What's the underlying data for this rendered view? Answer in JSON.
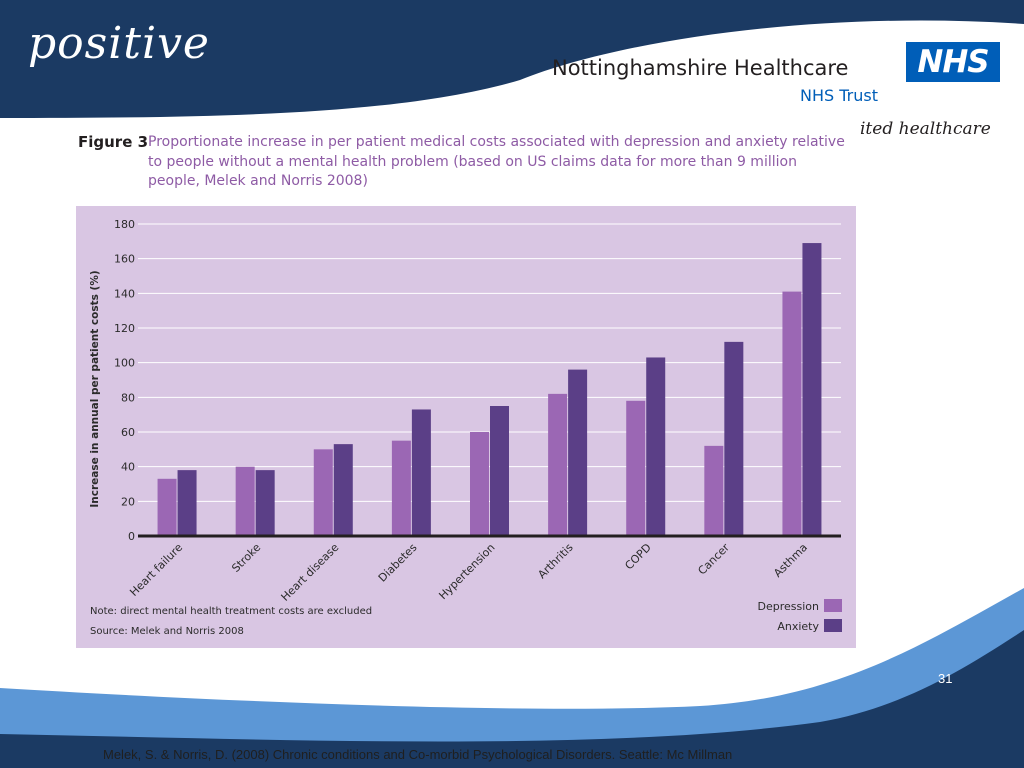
{
  "header": {
    "brand": "positive",
    "org_name": "Nottinghamshire Healthcare",
    "org_sub": "NHS Trust",
    "nhs_logo": "NHS",
    "tagline": "ited healthcare"
  },
  "figure": {
    "label": "Figure 3",
    "caption": "Proportionate increase in per patient medical costs associated with depression and anxiety relative to people without a mental health problem (based on US claims data for more than 9 million people, Melek and Norris 2008)",
    "note": "Note: direct mental health treatment costs are excluded",
    "source": "Source: Melek and Norris 2008"
  },
  "chart_data": {
    "type": "bar",
    "ylabel": "Increase in annual per patient costs (%)",
    "ylim": [
      0,
      180
    ],
    "yticks": [
      0,
      20,
      40,
      60,
      80,
      100,
      120,
      140,
      160,
      180
    ],
    "categories": [
      "Heart failure",
      "Stroke",
      "Heart disease",
      "Diabetes",
      "Hypertension",
      "Arthritis",
      "COPD",
      "Cancer",
      "Asthma"
    ],
    "series": [
      {
        "name": "Depression",
        "color": "#9b67b4",
        "values": [
          33,
          40,
          50,
          55,
          60,
          82,
          78,
          52,
          141
        ]
      },
      {
        "name": "Anxiety",
        "color": "#5b3f87",
        "values": [
          38,
          38,
          53,
          73,
          75,
          96,
          103,
          112,
          169
        ]
      }
    ],
    "grid": true,
    "legend": "bottom-right",
    "background": "#d9c6e3"
  },
  "slide": {
    "page_number": "31",
    "footnote": "Melek, S. & Norris, D. (2008) Chronic conditions and Co-morbid Psychological Disorders. Seattle: Mc Millman"
  }
}
